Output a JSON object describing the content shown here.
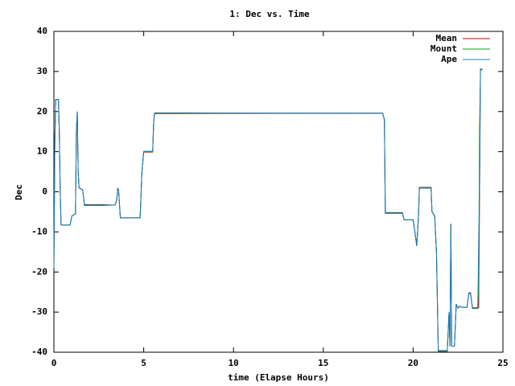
{
  "chart_data": {
    "type": "line",
    "title": "1: Dec vs. Time",
    "x_label": "time (Elapse Hours)",
    "y_label": "Dec",
    "xlim": [
      0,
      25
    ],
    "xticks": [
      0,
      5,
      10,
      15,
      20,
      25
    ],
    "ylim": [
      -40,
      40
    ],
    "yticks": [
      -40,
      -30,
      -20,
      -10,
      0,
      10,
      20,
      30,
      40
    ],
    "legend": "top-right",
    "x": [
      0,
      0.05,
      0.1,
      0.25,
      0.3,
      0.35,
      0.4,
      0.9,
      1.0,
      1.2,
      1.25,
      1.3,
      1.35,
      1.4,
      1.6,
      1.7,
      2.7,
      3.4,
      3.5,
      3.55,
      3.6,
      3.7,
      4.8,
      4.9,
      5.0,
      5.5,
      5.55,
      5.6,
      6.7,
      18.3,
      18.4,
      18.45,
      19.4,
      19.5,
      20.0,
      20.1,
      20.2,
      20.3,
      20.35,
      21.0,
      21.05,
      21.2,
      21.3,
      21.4,
      21.9,
      21.95,
      22.0,
      22.05,
      22.1,
      22.15,
      22.3,
      22.4,
      22.5,
      22.6,
      22.7,
      23.0,
      23.1,
      23.2,
      23.3,
      23.6,
      23.65,
      23.7,
      23.75,
      23.85
    ],
    "series": [
      {
        "name": "Mean",
        "color": "#cc0000",
        "values": [
          -19,
          12,
          23,
          23,
          15,
          0,
          -8.3,
          -8.3,
          -6,
          -5.5,
          15,
          20,
          5,
          1,
          0.5,
          -3.2,
          -3.2,
          -3.3,
          -2,
          0.8,
          0.5,
          -6.5,
          -6.5,
          5,
          9.9,
          9.9,
          17,
          19.5,
          19.5,
          19.6,
          18,
          -5.2,
          -5.2,
          -7,
          -7,
          -10,
          -13.5,
          -6,
          1.1,
          1.1,
          -5,
          -6,
          -15,
          -39.6,
          -39.6,
          -35,
          -30,
          -38.5,
          -8,
          -38.5,
          -38.5,
          -28,
          -29,
          -28.5,
          -28.8,
          -28.8,
          -25.2,
          -25.2,
          -28.9,
          -28.9,
          -28.9,
          0,
          30.6,
          30.6
        ]
      },
      {
        "name": "Mount",
        "color": "#00aa00",
        "values": [
          -19,
          12,
          23,
          23,
          15,
          0,
          -8.3,
          -8.3,
          -6,
          -5.5,
          15,
          20,
          5,
          1,
          0.5,
          -3.3,
          -3.3,
          -3.3,
          -2,
          0.8,
          0.5,
          -6.5,
          -6.5,
          5,
          10,
          10,
          17,
          19.6,
          19.6,
          19.6,
          18,
          -5.3,
          -5.3,
          -7,
          -7,
          -10,
          -13.5,
          -6,
          1,
          1,
          -5,
          -6,
          -15,
          -39.7,
          -39.7,
          -35,
          -30,
          -38.5,
          -8,
          -38.5,
          -38.5,
          -28,
          -29,
          -28.5,
          -28.8,
          -28.8,
          -25.3,
          -25.3,
          -29,
          -29,
          -24,
          16,
          30.5,
          30.5
        ]
      },
      {
        "name": "Ape",
        "color": "#1f77cc",
        "values": [
          -19,
          12,
          23,
          23,
          15,
          0,
          -8.3,
          -8.3,
          -6,
          -5.5,
          15,
          20,
          5,
          1,
          0.5,
          -3.4,
          -3.4,
          -3.3,
          -2,
          0.8,
          0.5,
          -6.5,
          -6.5,
          5,
          10.1,
          10.1,
          17,
          19.7,
          19.7,
          19.6,
          18,
          -5.4,
          -5.4,
          -7,
          -7,
          -10,
          -13.5,
          -6,
          0.9,
          0.9,
          -5,
          -6,
          -15,
          -39.8,
          -39.8,
          -35,
          -30,
          -38.5,
          -8,
          -38.5,
          -38.5,
          -28,
          -29,
          -28.5,
          -28.8,
          -28.8,
          -25.4,
          -25.4,
          -29.1,
          -29.1,
          -13,
          0,
          30.4,
          30.4
        ]
      }
    ]
  }
}
